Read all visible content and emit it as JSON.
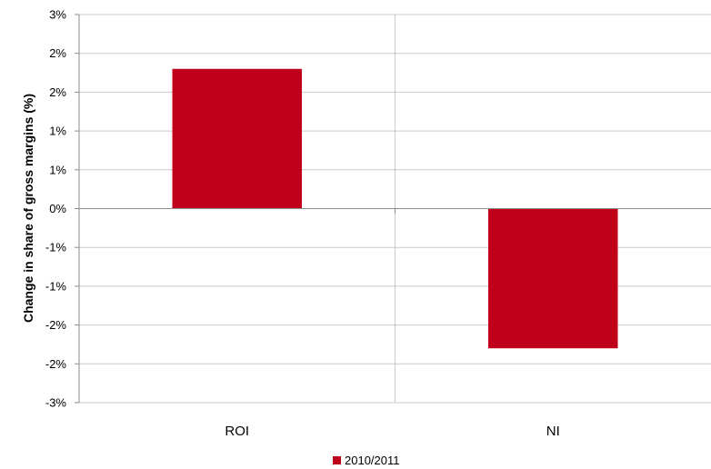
{
  "chart_data": {
    "type": "bar",
    "categories": [
      "ROI",
      "NI"
    ],
    "series": [
      {
        "name": "2010/2011",
        "values": [
          1.8,
          -1.8
        ],
        "color": "#c0001a"
      }
    ],
    "ylabel": "Change in share of gross margins (%)",
    "xlabel": "",
    "ylim": [
      -2.5,
      2.5
    ],
    "y_ticks": [
      {
        "value": 2.5,
        "label": "3%"
      },
      {
        "value": 2.0,
        "label": "2%"
      },
      {
        "value": 1.5,
        "label": "2%"
      },
      {
        "value": 1.0,
        "label": "1%"
      },
      {
        "value": 0.5,
        "label": "1%"
      },
      {
        "value": 0.0,
        "label": "0%"
      },
      {
        "value": -0.5,
        "label": "-1%"
      },
      {
        "value": -1.0,
        "label": "-1%"
      },
      {
        "value": -1.5,
        "label": "-2%"
      },
      {
        "value": -2.0,
        "label": "-2%"
      },
      {
        "value": -2.5,
        "label": "-3%"
      }
    ],
    "grid": true,
    "legend_position": "bottom"
  }
}
